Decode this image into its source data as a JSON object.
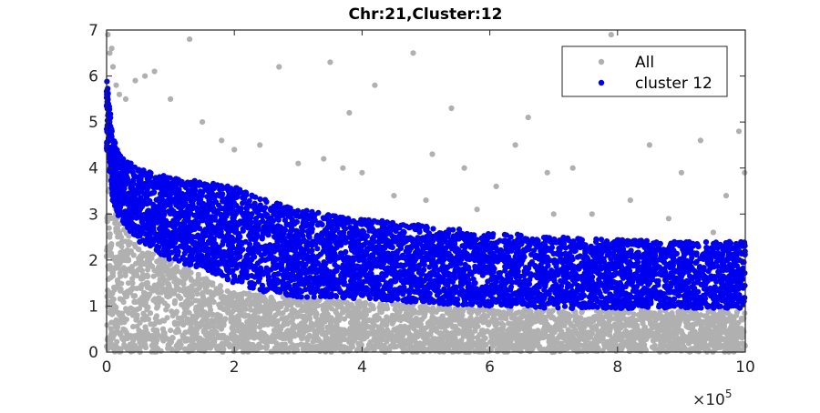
{
  "chart_data": {
    "type": "scatter",
    "title": "Chr:21,Cluster:12",
    "xlabel": "",
    "ylabel": "",
    "xlim": [
      0,
      1000000
    ],
    "ylim": [
      0,
      7
    ],
    "x_ticks": [
      0,
      200000,
      400000,
      600000,
      800000,
      1000000
    ],
    "x_tick_labels": [
      "0",
      "2",
      "4",
      "6",
      "8",
      "10"
    ],
    "x_exponent_label": "×10",
    "x_exponent_power": "5",
    "y_ticks": [
      0,
      1,
      2,
      3,
      4,
      5,
      6,
      7
    ],
    "y_tick_labels": [
      "0",
      "1",
      "2",
      "3",
      "4",
      "5",
      "6",
      "7"
    ],
    "grid": false,
    "legend_position": "top-right",
    "series": [
      {
        "name": "All",
        "color": "#b0b0b0",
        "band_x": [
          0,
          10000,
          20000,
          50000,
          100000,
          200000,
          300000,
          400000,
          500000,
          600000,
          700000,
          800000,
          900000,
          1000000
        ],
        "band_low": [
          0.0,
          0.0,
          0.0,
          0.0,
          0.0,
          0.0,
          0.0,
          0.0,
          0.0,
          0.0,
          0.0,
          0.0,
          0.0,
          0.0
        ],
        "band_high": [
          4.5,
          3.4,
          2.8,
          2.3,
          2.0,
          1.3,
          1.2,
          1.1,
          1.0,
          0.95,
          0.9,
          0.9,
          0.9,
          0.9
        ],
        "outliers": [
          [
            2000,
            6.9
          ],
          [
            5000,
            6.5
          ],
          [
            8000,
            6.6
          ],
          [
            10000,
            6.2
          ],
          [
            15000,
            5.8
          ],
          [
            20000,
            5.6
          ],
          [
            30000,
            5.5
          ],
          [
            45000,
            5.9
          ],
          [
            60000,
            6.0
          ],
          [
            75000,
            6.1
          ],
          [
            100000,
            5.5
          ],
          [
            130000,
            6.8
          ],
          [
            150000,
            5.0
          ],
          [
            180000,
            4.6
          ],
          [
            200000,
            4.4
          ],
          [
            240000,
            4.5
          ],
          [
            270000,
            6.2
          ],
          [
            300000,
            4.1
          ],
          [
            340000,
            4.2
          ],
          [
            350000,
            6.3
          ],
          [
            370000,
            4.0
          ],
          [
            380000,
            5.2
          ],
          [
            400000,
            3.9
          ],
          [
            420000,
            5.8
          ],
          [
            450000,
            3.4
          ],
          [
            480000,
            6.5
          ],
          [
            500000,
            3.3
          ],
          [
            510000,
            4.3
          ],
          [
            540000,
            5.3
          ],
          [
            560000,
            4.0
          ],
          [
            580000,
            3.1
          ],
          [
            610000,
            3.6
          ],
          [
            640000,
            4.5
          ],
          [
            660000,
            5.1
          ],
          [
            690000,
            3.9
          ],
          [
            700000,
            3.0
          ],
          [
            730000,
            4.0
          ],
          [
            760000,
            3.0
          ],
          [
            790000,
            6.9
          ],
          [
            820000,
            3.3
          ],
          [
            850000,
            4.5
          ],
          [
            880000,
            2.9
          ],
          [
            900000,
            3.9
          ],
          [
            930000,
            4.6
          ],
          [
            950000,
            2.6
          ],
          [
            970000,
            3.4
          ],
          [
            990000,
            4.8
          ],
          [
            999000,
            3.9
          ]
        ]
      },
      {
        "name": "cluster 12",
        "color": "#0000ee",
        "band_x": [
          0,
          5000,
          10000,
          20000,
          50000,
          100000,
          150000,
          200000,
          250000,
          300000,
          400000,
          500000,
          600000,
          700000,
          800000,
          900000,
          1000000
        ],
        "band_low": [
          4.4,
          3.9,
          3.2,
          2.9,
          2.4,
          2.0,
          1.8,
          1.5,
          1.3,
          1.2,
          1.15,
          1.05,
          1.0,
          0.95,
          0.95,
          0.95,
          0.95
        ],
        "band_high": [
          6.0,
          5.3,
          4.7,
          4.3,
          4.0,
          3.8,
          3.7,
          3.6,
          3.3,
          3.1,
          2.9,
          2.75,
          2.6,
          2.5,
          2.45,
          2.4,
          2.4
        ]
      }
    ]
  }
}
